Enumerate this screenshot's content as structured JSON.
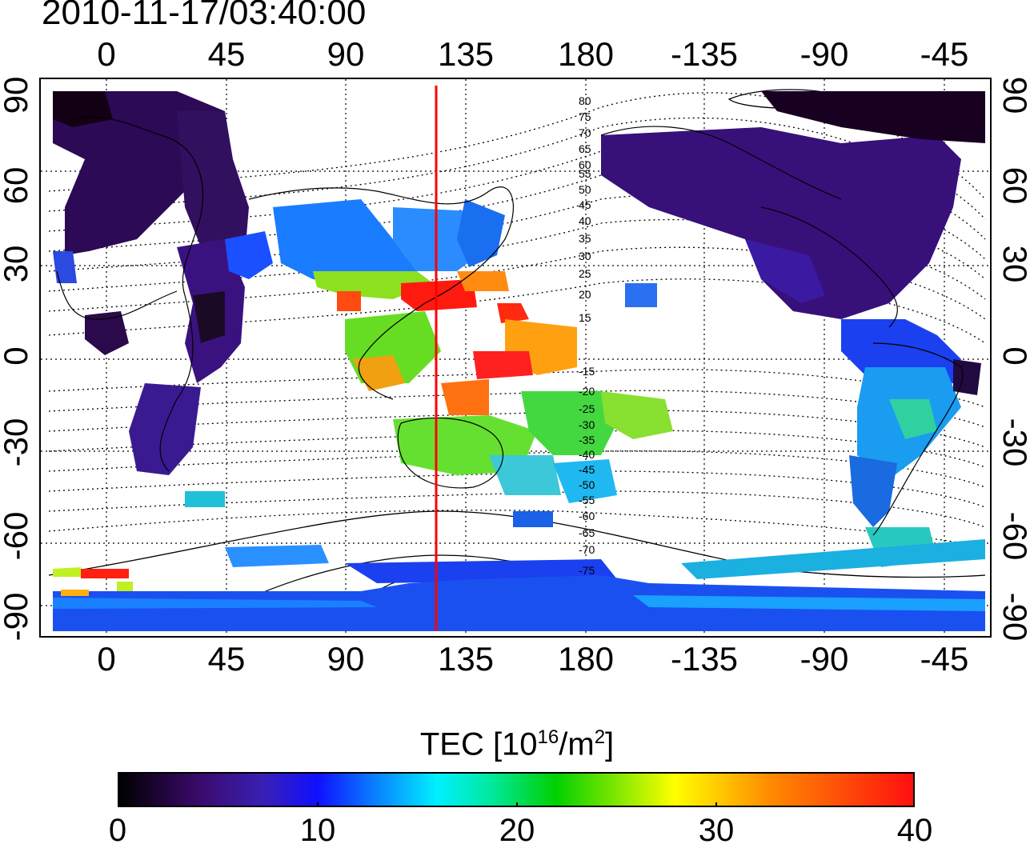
{
  "timestamp": "2010-11-17/03:40:00",
  "lon_ticks": [
    "0",
    "45",
    "90",
    "135",
    "180",
    "-135",
    "-90",
    "-45"
  ],
  "lat_ticks": [
    "90",
    "60",
    "30",
    "0",
    "-30",
    "-60",
    "-90"
  ],
  "contour_labels_north": [
    "80",
    "75",
    "70",
    "65",
    "60",
    "55",
    "50",
    "45",
    "40",
    "35",
    "30",
    "25",
    "20",
    "15"
  ],
  "contour_labels_south": [
    "-15",
    "-20",
    "-25",
    "-30",
    "-35",
    "-40",
    "-45",
    "-50",
    "-55",
    "-60",
    "-65",
    "-70",
    "-75"
  ],
  "colorbar": {
    "title_main": "TEC  [10",
    "title_sup1": "16",
    "title_mid": "/m",
    "title_sup2": "2",
    "title_end": "]",
    "ticks": [
      "0",
      "10",
      "20",
      "30",
      "40"
    ],
    "range": [
      0,
      40
    ],
    "colors": [
      "#000000",
      "#3a0a6a",
      "#1010ff",
      "#00f0ff",
      "#00d000",
      "#ffff00",
      "#ff8a00",
      "#ff1010"
    ]
  },
  "marker_line": {
    "lon": 127,
    "color": "#ff0000"
  }
}
